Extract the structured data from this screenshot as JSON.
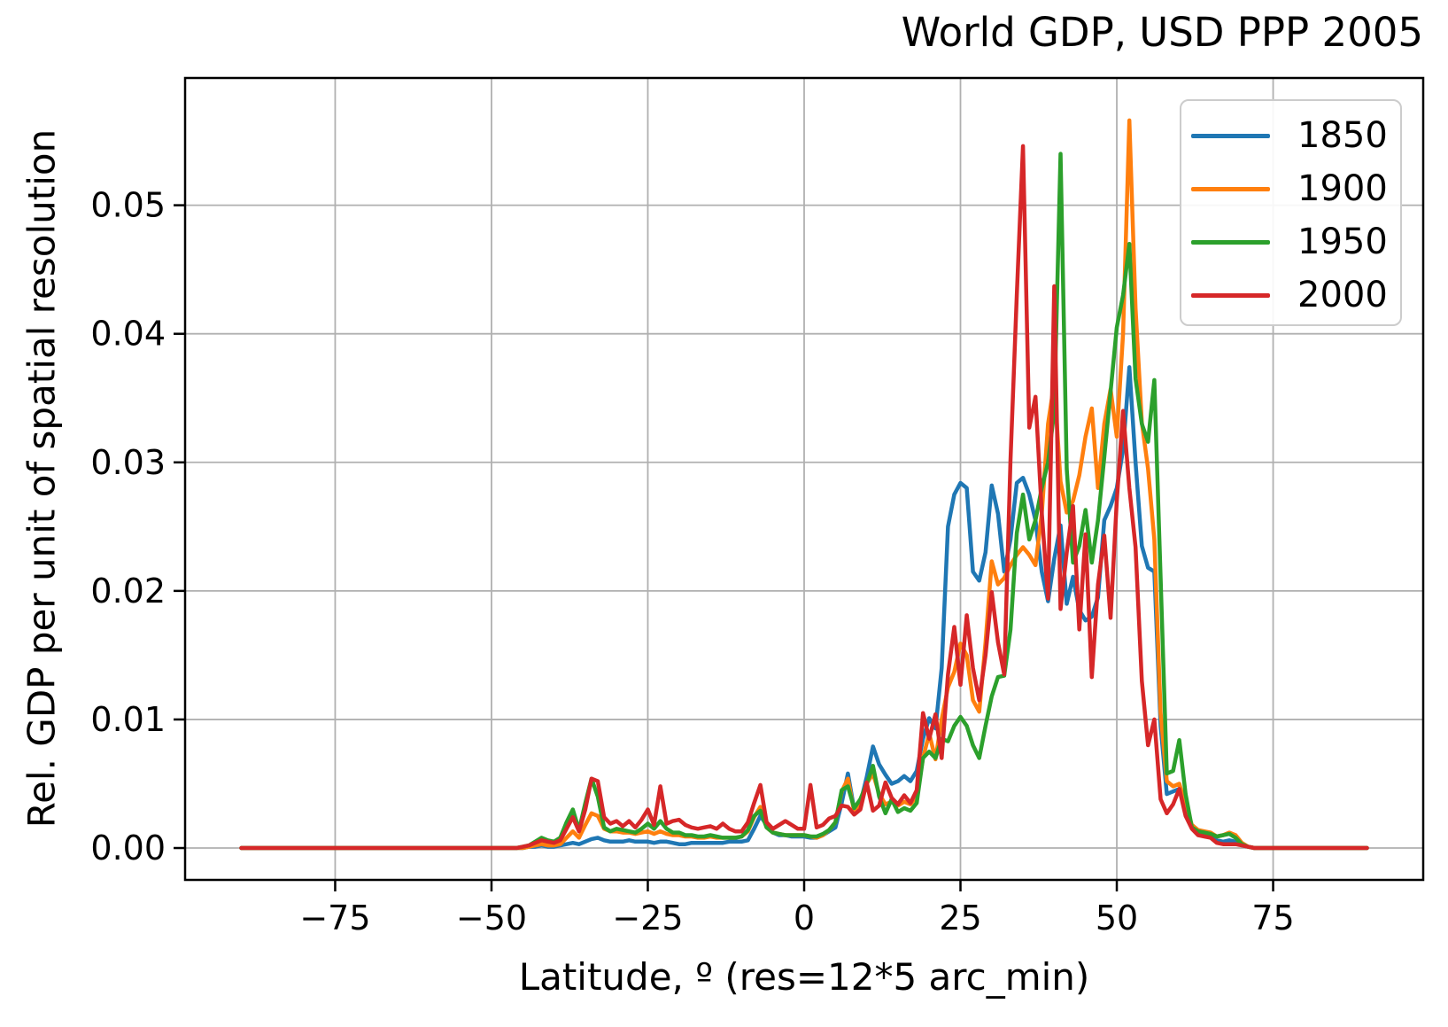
{
  "title": "World GDP, USD PPP 2005",
  "axes": {
    "xlabel": "Latitude, º (res=12*5 arc_min)",
    "ylabel": "Rel. GDP per unit of spatial resolution",
    "xticks": [
      -75,
      -50,
      -25,
      0,
      25,
      50,
      75
    ],
    "xtick_labels": [
      "−75",
      "−50",
      "−25",
      "0",
      "25",
      "50",
      "75"
    ],
    "yticks": [
      0,
      0.01,
      0.02,
      0.03,
      0.04,
      0.05
    ],
    "ytick_labels": [
      "0.00",
      "0.01",
      "0.02",
      "0.03",
      "0.04",
      "0.05"
    ],
    "grid_color": "#b0b0b0",
    "frame_color": "#000000"
  },
  "legend": {
    "entries": [
      {
        "label": "1850",
        "color": "#1f77b4"
      },
      {
        "label": "1900",
        "color": "#ff7f0e"
      },
      {
        "label": "1950",
        "color": "#2ca02c"
      },
      {
        "label": "2000",
        "color": "#d62728"
      }
    ]
  },
  "chart_data": {
    "type": "line",
    "title": "World GDP, USD PPP 2005",
    "xlabel": "Latitude, º (res=12*5 arc_min)",
    "ylabel": "Rel. GDP per unit of spatial resolution",
    "xlim": [
      -99,
      99
    ],
    "ylim": [
      -0.00248,
      0.0599
    ],
    "grid": true,
    "legend_position": "upper right",
    "x_start": -90,
    "x_step": 1,
    "x_end": 90,
    "value_scale": 0.0001,
    "series": [
      {
        "name": "1850",
        "color": "#1f77b4",
        "values": [
          0,
          0,
          0,
          0,
          0,
          0,
          0,
          0,
          0,
          0,
          0,
          0,
          0,
          0,
          0,
          0,
          0,
          0,
          0,
          0,
          0,
          0,
          0,
          0,
          0,
          0,
          0,
          0,
          0,
          0,
          0,
          0,
          0,
          0,
          0,
          0,
          0,
          0,
          0,
          0,
          0,
          0,
          0,
          0,
          0,
          0,
          1,
          1,
          2,
          1,
          1,
          2,
          3,
          4,
          3,
          5,
          7,
          8,
          6,
          5,
          5,
          5,
          6,
          5,
          5,
          5,
          4,
          5,
          5,
          4,
          3,
          3,
          4,
          4,
          4,
          4,
          4,
          4,
          5,
          5,
          5,
          6,
          15,
          25,
          18,
          12,
          10,
          10,
          9,
          9,
          9,
          8,
          8,
          10,
          13,
          16,
          35,
          58,
          30,
          35,
          55,
          79,
          65,
          57,
          50,
          52,
          56,
          52,
          60,
          85,
          101,
          93,
          140,
          250,
          275,
          284,
          280,
          215,
          208,
          230,
          282,
          260,
          215,
          240,
          284,
          288,
          275,
          255,
          215,
          192,
          225,
          251,
          190,
          211,
          185,
          177,
          180,
          195,
          255,
          266,
          280,
          310,
          374,
          300,
          235,
          218,
          215,
          95,
          42,
          44,
          46,
          28,
          16,
          13,
          12,
          10,
          6,
          5,
          6,
          5,
          2,
          1,
          0,
          0,
          0,
          0,
          0,
          0,
          0,
          0,
          0,
          0,
          0,
          0,
          0,
          0,
          0,
          0,
          0,
          0,
          0
        ]
      },
      {
        "name": "1900",
        "color": "#ff7f0e",
        "values": [
          0,
          0,
          0,
          0,
          0,
          0,
          0,
          0,
          0,
          0,
          0,
          0,
          0,
          0,
          0,
          0,
          0,
          0,
          0,
          0,
          0,
          0,
          0,
          0,
          0,
          0,
          0,
          0,
          0,
          0,
          0,
          0,
          0,
          0,
          0,
          0,
          0,
          0,
          0,
          0,
          0,
          0,
          0,
          0,
          0,
          0,
          1,
          2,
          3,
          2,
          2,
          3,
          8,
          13,
          8,
          18,
          27,
          25,
          15,
          13,
          13,
          12,
          12,
          11,
          12,
          13,
          11,
          13,
          11,
          10,
          10,
          9,
          9,
          8,
          8,
          9,
          8,
          8,
          8,
          8,
          9,
          13,
          24,
          32,
          16,
          12,
          11,
          10,
          10,
          10,
          10,
          9,
          8,
          10,
          14,
          20,
          44,
          54,
          28,
          36,
          50,
          58,
          42,
          34,
          36,
          33,
          36,
          34,
          40,
          70,
          89,
          69,
          100,
          125,
          137,
          159,
          150,
          115,
          106,
          160,
          223,
          205,
          210,
          220,
          228,
          234,
          228,
          220,
          260,
          330,
          362,
          285,
          261,
          270,
          290,
          320,
          342,
          280,
          330,
          357,
          320,
          400,
          566,
          420,
          331,
          295,
          240,
          105,
          52,
          48,
          50,
          33,
          18,
          14,
          13,
          12,
          9,
          10,
          12,
          10,
          4,
          1,
          0,
          0,
          0,
          0,
          0,
          0,
          0,
          0,
          0,
          0,
          0,
          0,
          0,
          0,
          0,
          0,
          0,
          0,
          0
        ]
      },
      {
        "name": "1950",
        "color": "#2ca02c",
        "values": [
          0,
          0,
          0,
          0,
          0,
          0,
          0,
          0,
          0,
          0,
          0,
          0,
          0,
          0,
          0,
          0,
          0,
          0,
          0,
          0,
          0,
          0,
          0,
          0,
          0,
          0,
          0,
          0,
          0,
          0,
          0,
          0,
          0,
          0,
          0,
          0,
          0,
          0,
          0,
          0,
          0,
          0,
          0,
          0,
          0,
          1,
          2,
          5,
          8,
          6,
          5,
          8,
          20,
          30,
          14,
          35,
          54,
          40,
          16,
          13,
          15,
          14,
          13,
          12,
          15,
          19,
          15,
          21,
          15,
          12,
          12,
          10,
          10,
          9,
          9,
          10,
          9,
          8,
          8,
          8,
          9,
          14,
          25,
          29,
          16,
          12,
          11,
          10,
          10,
          10,
          10,
          9,
          9,
          11,
          14,
          20,
          45,
          48,
          31,
          38,
          50,
          64,
          40,
          27,
          38,
          28,
          31,
          29,
          35,
          70,
          75,
          70,
          85,
          83,
          95,
          102,
          95,
          80,
          70,
          95,
          118,
          133,
          134,
          170,
          245,
          275,
          240,
          255,
          280,
          300,
          340,
          540,
          295,
          222,
          235,
          263,
          222,
          255,
          304,
          355,
          405,
          430,
          470,
          365,
          330,
          316,
          364,
          210,
          58,
          60,
          84,
          42,
          16,
          13,
          12,
          11,
          9,
          10,
          11,
          8,
          3,
          1,
          0,
          0,
          0,
          0,
          0,
          0,
          0,
          0,
          0,
          0,
          0,
          0,
          0,
          0,
          0,
          0,
          0,
          0,
          0
        ]
      },
      {
        "name": "2000",
        "color": "#d62728",
        "values": [
          0,
          0,
          0,
          0,
          0,
          0,
          0,
          0,
          0,
          0,
          0,
          0,
          0,
          0,
          0,
          0,
          0,
          0,
          0,
          0,
          0,
          0,
          0,
          0,
          0,
          0,
          0,
          0,
          0,
          0,
          0,
          0,
          0,
          0,
          0,
          0,
          0,
          0,
          0,
          0,
          0,
          0,
          0,
          0,
          0,
          1,
          2,
          4,
          6,
          5,
          4,
          6,
          15,
          24,
          13,
          30,
          54,
          52,
          24,
          19,
          21,
          17,
          21,
          16,
          22,
          30,
          18,
          48,
          19,
          21,
          22,
          18,
          16,
          15,
          16,
          17,
          15,
          19,
          15,
          13,
          13,
          20,
          35,
          49,
          20,
          15,
          18,
          21,
          18,
          15,
          15,
          49,
          16,
          18,
          23,
          25,
          33,
          32,
          26,
          30,
          51,
          29,
          33,
          51,
          39,
          34,
          41,
          35,
          45,
          105,
          85,
          104,
          70,
          135,
          172,
          127,
          181,
          140,
          115,
          150,
          199,
          160,
          135,
          302,
          430,
          546,
          327,
          351,
          261,
          194,
          437,
          186,
          230,
          266,
          170,
          244,
          133,
          205,
          243,
          179,
          270,
          340,
          280,
          234,
          130,
          80,
          100,
          38,
          27,
          34,
          46,
          25,
          15,
          10,
          9,
          8,
          4,
          3,
          3,
          3,
          2,
          1,
          0,
          0,
          0,
          0,
          0,
          0,
          0,
          0,
          0,
          0,
          0,
          0,
          0,
          0,
          0,
          0,
          0,
          0,
          0
        ]
      }
    ]
  }
}
